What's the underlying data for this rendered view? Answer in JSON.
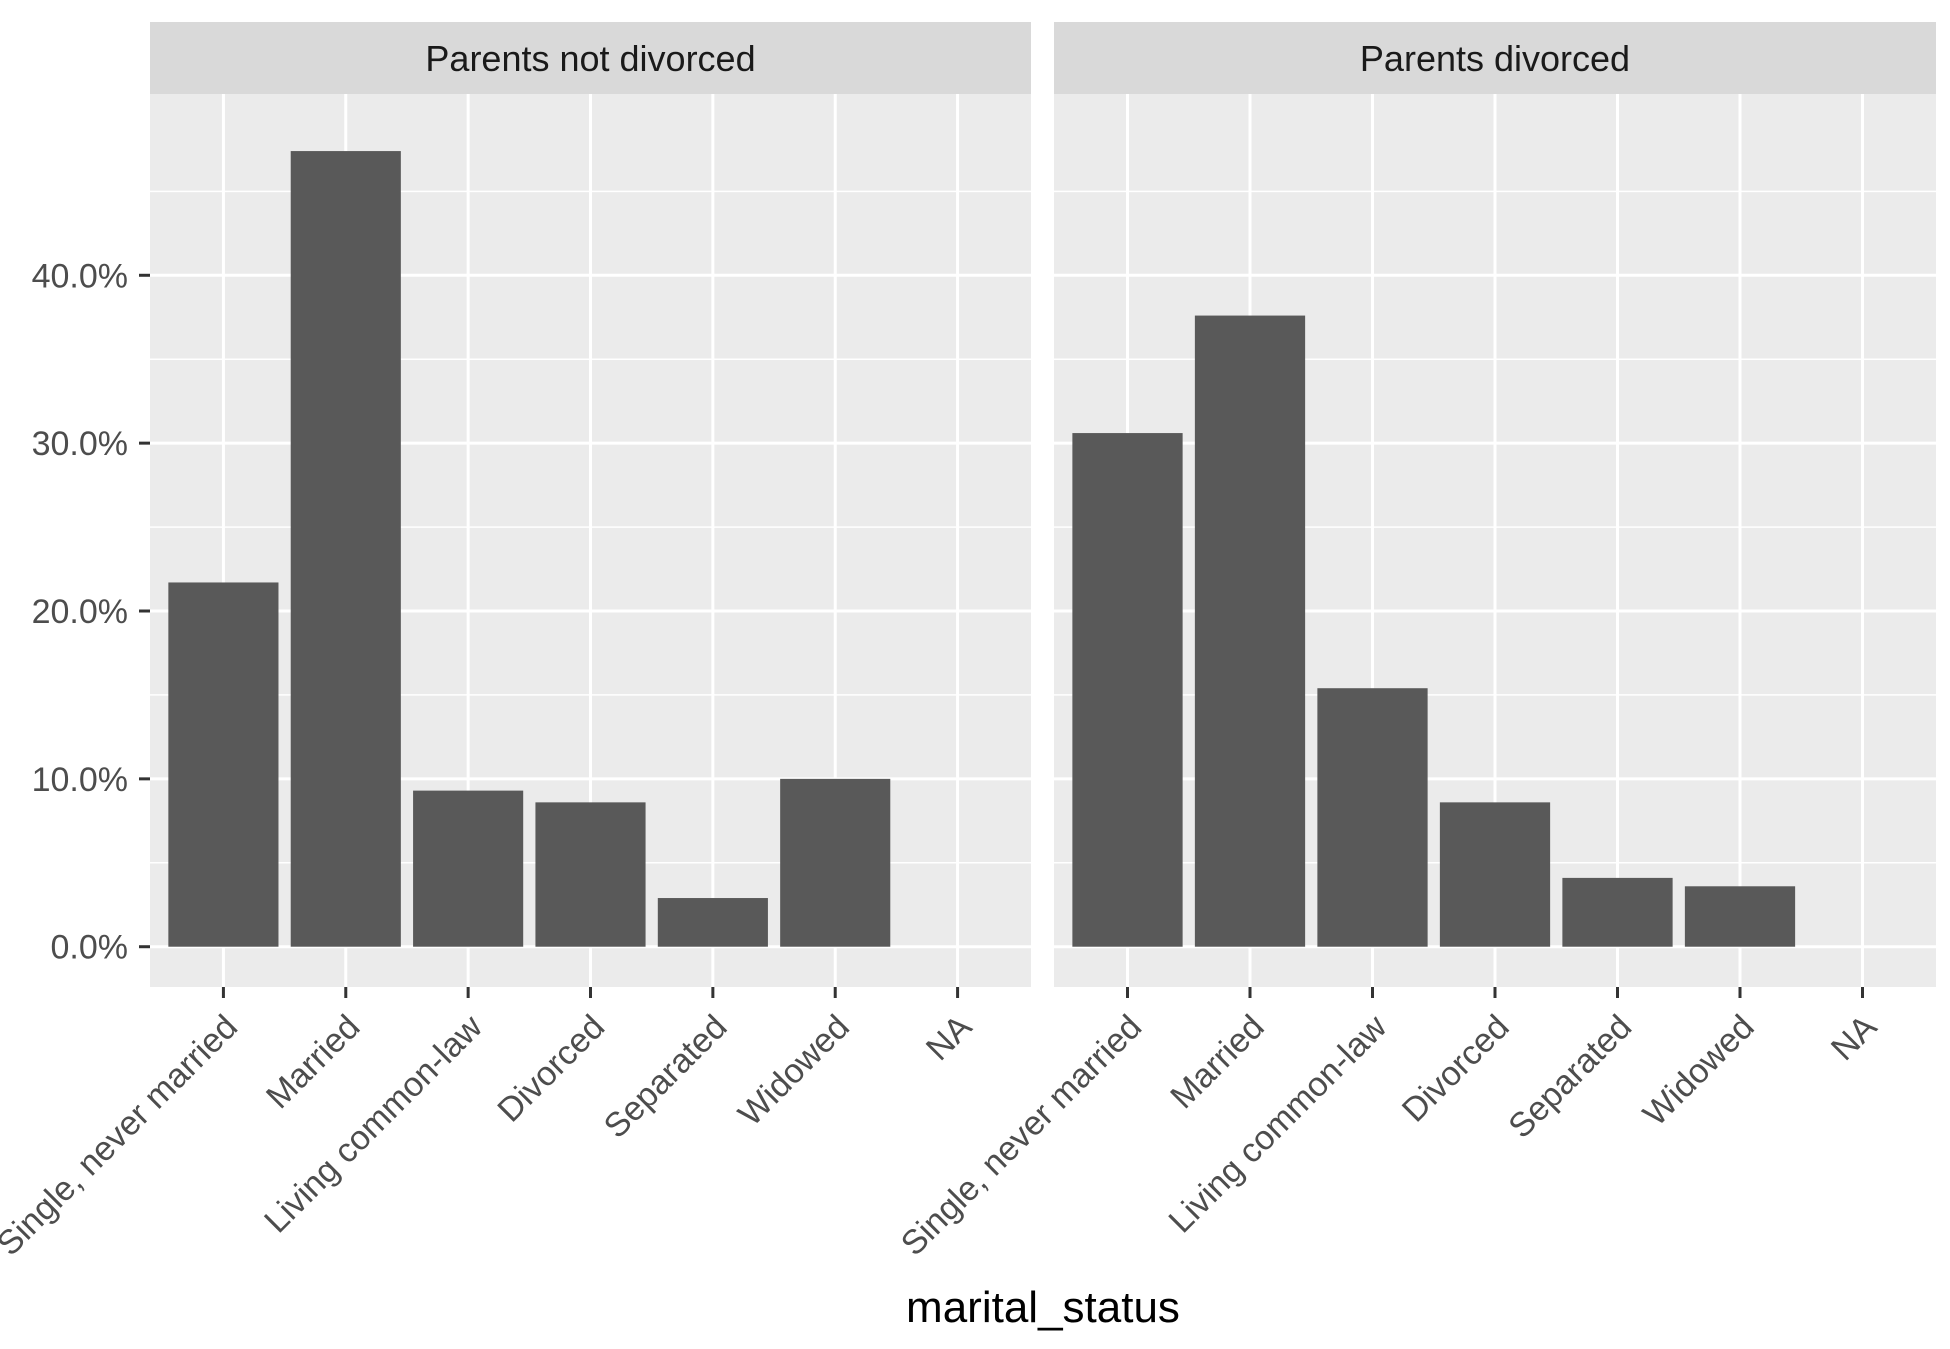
{
  "chart_data": {
    "type": "bar",
    "facets": [
      "Parents not divorced",
      "Parents divorced"
    ],
    "categories": [
      "Single, never married",
      "Married",
      "Living common-law",
      "Divorced",
      "Separated",
      "Widowed",
      "NA"
    ],
    "series": [
      {
        "facet": "Parents not divorced",
        "values": [
          21.7,
          47.4,
          9.3,
          8.6,
          2.9,
          10.0,
          0
        ]
      },
      {
        "facet": "Parents divorced",
        "values": [
          30.6,
          37.6,
          15.4,
          8.6,
          4.1,
          3.6,
          0
        ]
      }
    ],
    "xlabel": "marital_status",
    "ylabel": "",
    "ylim": [
      -2.4,
      50.8
    ],
    "yticks": [
      0,
      10,
      20,
      30,
      40
    ],
    "ytick_labels": [
      "0.0%",
      "10.0%",
      "20.0%",
      "30.0%",
      "40.0%"
    ],
    "grid": true,
    "colors": {
      "bar": "#595959",
      "panel": "#ebebeb",
      "grid": "#ffffff",
      "strip": "#d9d9d9",
      "tick": "#333333"
    }
  }
}
